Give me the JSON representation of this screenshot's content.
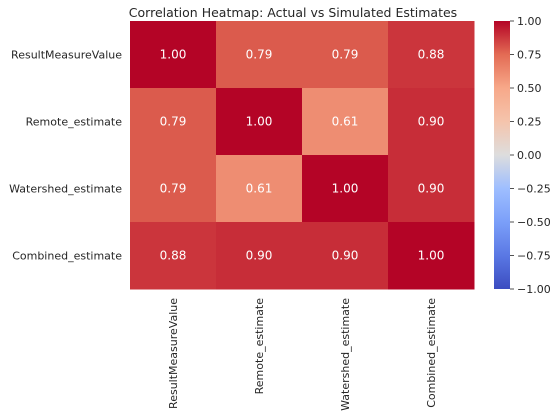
{
  "chart_data": {
    "type": "heatmap",
    "title": "Correlation Heatmap: Actual vs Simulated Estimates",
    "row_labels": [
      "ResultMeasureValue",
      "Remote_estimate",
      "Watershed_estimate",
      "Combined_estimate"
    ],
    "col_labels": [
      "ResultMeasureValue",
      "Remote_estimate",
      "Watershed_estimate",
      "Combined_estimate"
    ],
    "values": [
      [
        1.0,
        0.79,
        0.79,
        0.88
      ],
      [
        0.79,
        1.0,
        0.61,
        0.9
      ],
      [
        0.79,
        0.61,
        1.0,
        0.9
      ],
      [
        0.88,
        0.9,
        0.9,
        1.0
      ]
    ],
    "annotations": [
      [
        "1.00",
        "0.79",
        "0.79",
        "0.88"
      ],
      [
        "0.79",
        "1.00",
        "0.61",
        "0.90"
      ],
      [
        "0.79",
        "0.61",
        "1.00",
        "0.90"
      ],
      [
        "0.88",
        "0.90",
        "0.90",
        "1.00"
      ]
    ],
    "colormap": "coolwarm",
    "vmin": -1.0,
    "vmax": 1.0,
    "colorbar_ticks": [
      {
        "value": 1.0,
        "label": "1.00"
      },
      {
        "value": 0.75,
        "label": "0.75"
      },
      {
        "value": 0.5,
        "label": "0.50"
      },
      {
        "value": 0.25,
        "label": "0.25"
      },
      {
        "value": 0.0,
        "label": "0.00"
      },
      {
        "value": -0.25,
        "label": "−0.25"
      },
      {
        "value": -0.5,
        "label": "−0.50"
      },
      {
        "value": -0.75,
        "label": "−0.75"
      },
      {
        "value": -1.0,
        "label": "−1.00"
      }
    ],
    "colorbar_placement": "right"
  }
}
